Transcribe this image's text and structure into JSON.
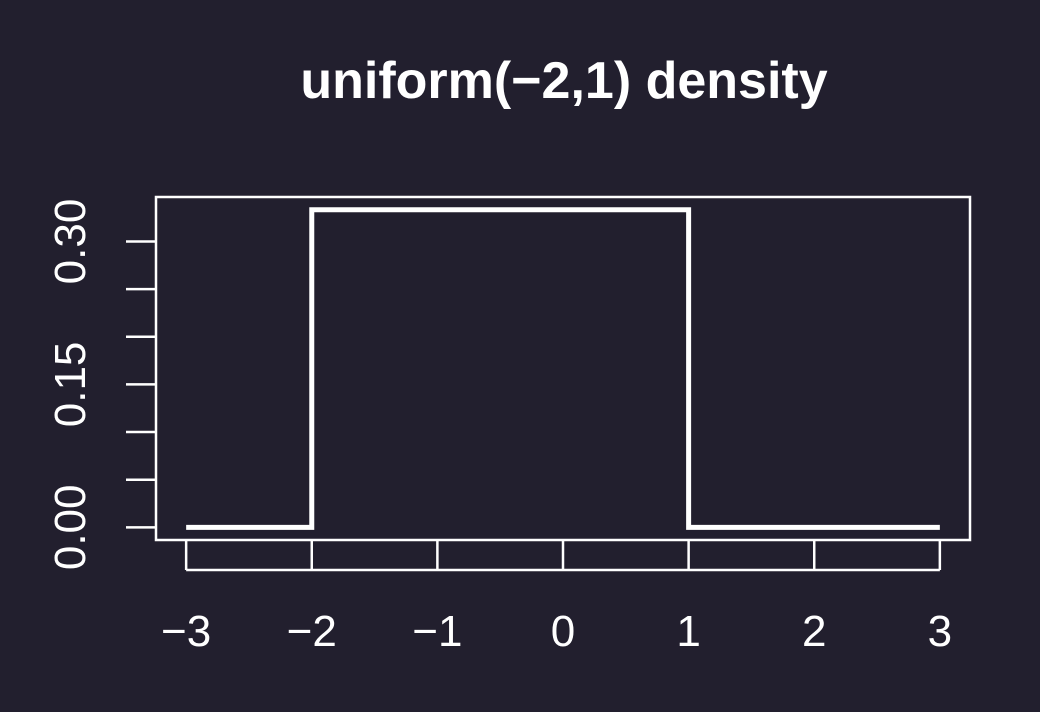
{
  "chart_data": {
    "type": "line",
    "title": "uniform(−2,1) density",
    "xlabel": "",
    "ylabel": "",
    "xlim": [
      -3.24,
      3.24
    ],
    "ylim": [
      -0.0133,
      0.3467
    ],
    "grid": false,
    "x_ticks": [
      -3,
      -2,
      -1,
      0,
      1,
      2,
      3
    ],
    "x_tick_labels": [
      "−3",
      "−2",
      "−1",
      "0",
      "1",
      "2",
      "3"
    ],
    "y_ticks": [
      0,
      0.05,
      0.1,
      0.15,
      0.2,
      0.25,
      0.3
    ],
    "y_tick_labels": [
      {
        "value": 0,
        "text": "0.00"
      },
      {
        "value": 0.15,
        "text": "0.15"
      },
      {
        "value": 0.3,
        "text": "0.30"
      }
    ],
    "series": [
      {
        "x": [
          -3,
          -2,
          -2,
          1,
          1,
          3
        ],
        "y": [
          0,
          0,
          0.3333,
          0.3333,
          0,
          0
        ]
      }
    ],
    "line_color": "#ffffff",
    "background": "#221f2e"
  }
}
